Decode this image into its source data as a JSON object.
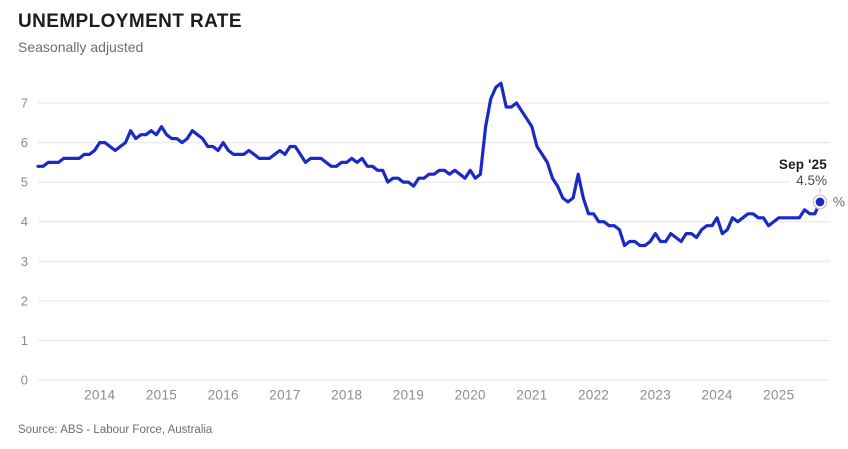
{
  "header": {
    "title": "UNEMPLOYMENT RATE",
    "subtitle": "Seasonally adjusted"
  },
  "source_line": "Source: ABS - Labour Force, Australia",
  "annotation": {
    "date_label": "Sep '25",
    "value_label": "4.5%",
    "unit_label": "%"
  },
  "colors": {
    "line": "#1b2ac5",
    "grid": "#e5e5e5",
    "axis_text": "#8c8c8c",
    "title_text": "#1d1d1d",
    "subtitle_text": "#6e6e6e",
    "annotation_date_text": "#1d1d1d",
    "annotation_value_text": "#4d4d4d",
    "unit_text": "#6e6e6e",
    "dot_halo_stroke": "#c9c9c9",
    "background": "#ffffff"
  },
  "chart_data": {
    "type": "line",
    "title": "UNEMPLOYMENT RATE",
    "subtitle": "Seasonally adjusted",
    "unit": "%",
    "x_start": "2013-01",
    "x_end": "2025-09",
    "x_frequency": "monthly",
    "x_tick_labels": [
      "2014",
      "2015",
      "2016",
      "2017",
      "2018",
      "2019",
      "2020",
      "2021",
      "2022",
      "2023",
      "2024",
      "2025"
    ],
    "y_ticks": [
      0,
      1,
      2,
      3,
      4,
      5,
      6,
      7
    ],
    "ylim": [
      0,
      7.6
    ],
    "grid": true,
    "legend": false,
    "series": [
      {
        "name": "Unemployment rate, seasonally adjusted (%)",
        "values": [
          5.4,
          5.4,
          5.5,
          5.5,
          5.5,
          5.6,
          5.6,
          5.6,
          5.6,
          5.7,
          5.7,
          5.8,
          6.0,
          6.0,
          5.9,
          5.8,
          5.9,
          6.0,
          6.3,
          6.1,
          6.2,
          6.2,
          6.3,
          6.2,
          6.4,
          6.2,
          6.1,
          6.1,
          6.0,
          6.1,
          6.3,
          6.2,
          6.1,
          5.9,
          5.9,
          5.8,
          6.0,
          5.8,
          5.7,
          5.7,
          5.7,
          5.8,
          5.7,
          5.6,
          5.6,
          5.6,
          5.7,
          5.8,
          5.7,
          5.9,
          5.9,
          5.7,
          5.5,
          5.6,
          5.6,
          5.6,
          5.5,
          5.4,
          5.4,
          5.5,
          5.5,
          5.6,
          5.5,
          5.6,
          5.4,
          5.4,
          5.3,
          5.3,
          5.0,
          5.1,
          5.1,
          5.0,
          5.0,
          4.9,
          5.1,
          5.1,
          5.2,
          5.2,
          5.3,
          5.3,
          5.2,
          5.3,
          5.2,
          5.1,
          5.3,
          5.1,
          5.2,
          6.4,
          7.1,
          7.4,
          7.5,
          6.9,
          6.9,
          7.0,
          6.8,
          6.6,
          6.4,
          5.9,
          5.7,
          5.5,
          5.1,
          4.9,
          4.6,
          4.5,
          4.6,
          5.2,
          4.6,
          4.2,
          4.2,
          4.0,
          4.0,
          3.9,
          3.9,
          3.8,
          3.4,
          3.5,
          3.5,
          3.4,
          3.4,
          3.5,
          3.7,
          3.5,
          3.5,
          3.7,
          3.6,
          3.5,
          3.7,
          3.7,
          3.6,
          3.8,
          3.9,
          3.9,
          4.1,
          3.7,
          3.8,
          4.1,
          4.0,
          4.1,
          4.2,
          4.2,
          4.1,
          4.1,
          3.9,
          4.0,
          4.1,
          4.1,
          4.1,
          4.1,
          4.1,
          4.3,
          4.2,
          4.2,
          4.5
        ]
      }
    ],
    "last_point": {
      "label": "Sep '25",
      "value": 4.5
    }
  }
}
